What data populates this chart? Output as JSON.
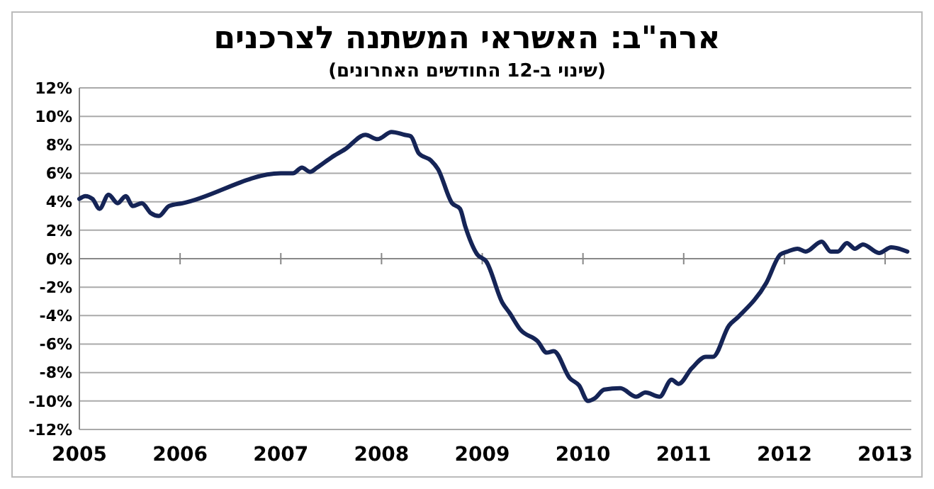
{
  "chart_data": {
    "type": "line",
    "title": "ארה\"ב: האשראי המשתנה לצרכנים",
    "subtitle": "(שינוי ב-12 החודשים האחרונים)",
    "x": [
      2005.0,
      2005.06,
      2005.13,
      2005.2,
      2005.29,
      2005.38,
      2005.46,
      2005.53,
      2005.62,
      2005.71,
      2005.79,
      2005.89,
      2006.03,
      2007.0,
      2007.12,
      2007.21,
      2007.29,
      2007.36,
      2007.5,
      2007.64,
      2007.84,
      2007.96,
      2008.1,
      2008.23,
      2008.29,
      2008.37,
      2008.49,
      2008.56,
      2008.7,
      2008.78,
      2008.83,
      2008.95,
      2009.04,
      2009.2,
      2009.27,
      2009.38,
      2009.55,
      2009.64,
      2009.71,
      2009.87,
      2009.96,
      2010.05,
      2010.12,
      2010.21,
      2010.37,
      2010.53,
      2010.62,
      2010.76,
      2010.88,
      2010.95,
      2011.08,
      2011.22,
      2011.29,
      2011.45,
      2011.54,
      2011.82,
      2011.96,
      2012.03,
      2012.13,
      2012.21,
      2012.37,
      2012.46,
      2012.53,
      2012.62,
      2012.7,
      2012.78,
      2012.94,
      2013.06,
      2013.22
    ],
    "series": [
      {
        "color": "#152456",
        "values": [
          4.2,
          4.4,
          4.2,
          3.5,
          4.5,
          3.9,
          4.4,
          3.7,
          3.9,
          3.2,
          3.0,
          3.7,
          3.9,
          6.0,
          6.0,
          6.4,
          6.1,
          6.4,
          7.1,
          7.7,
          8.7,
          8.4,
          8.9,
          8.7,
          8.6,
          7.4,
          6.9,
          6.3,
          3.9,
          3.5,
          2.3,
          0.3,
          -0.2,
          -3.1,
          -3.8,
          -5.0,
          -5.8,
          -6.6,
          -6.5,
          -8.4,
          -8.9,
          -10.0,
          -9.8,
          -9.2,
          -9.1,
          -9.7,
          -9.4,
          -9.7,
          -8.5,
          -8.8,
          -7.7,
          -6.9,
          -6.9,
          -4.7,
          -4.1,
          -1.7,
          0.3,
          0.5,
          0.7,
          0.5,
          1.2,
          0.5,
          0.5,
          1.1,
          0.7,
          1.0,
          0.4,
          0.8,
          0.5
        ]
      }
    ],
    "xlim": [
      2005,
      2013.26
    ],
    "xticks": [
      2005,
      2006,
      2007,
      2008,
      2009,
      2010,
      2011,
      2012,
      2013
    ],
    "ylim": [
      -12,
      12
    ],
    "yticks": [
      {
        "value": -12,
        "label": "-12%"
      },
      {
        "value": -10,
        "label": "-10%"
      },
      {
        "value": -8,
        "label": "-8%"
      },
      {
        "value": -6,
        "label": "-6%"
      },
      {
        "value": -4,
        "label": "-4%"
      },
      {
        "value": -2,
        "label": "-2%"
      },
      {
        "value": 0,
        "label": "0%"
      },
      {
        "value": 2,
        "label": "2%"
      },
      {
        "value": 4,
        "label": "4%"
      },
      {
        "value": 6,
        "label": "6%"
      },
      {
        "value": 8,
        "label": "8%"
      },
      {
        "value": 10,
        "label": "10%"
      },
      {
        "value": 12,
        "label": "12%"
      }
    ],
    "grid": "y",
    "marker": "none",
    "line_style": "solid"
  }
}
